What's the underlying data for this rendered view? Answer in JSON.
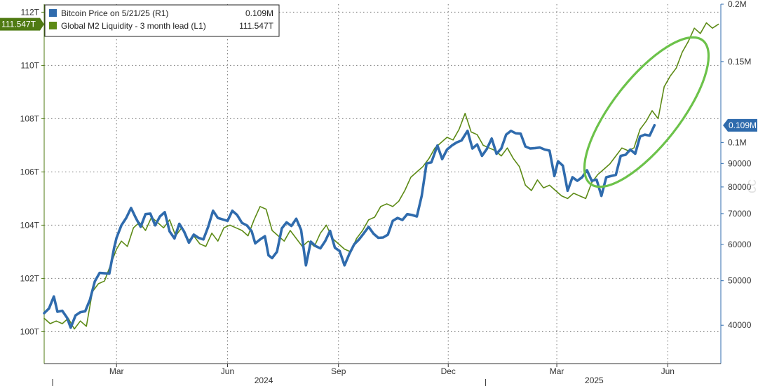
{
  "colors": {
    "btc": "#2f6bad",
    "m2": "#5c8a15",
    "highlight": "#6cc24a",
    "grid": "#777777",
    "axis_left": "#4f7a12",
    "axis_right": "#2f6bad"
  },
  "legend": {
    "items": [
      {
        "label": "Bitcoin Price on 5/21/25 (R1)",
        "value": "0.109M",
        "color": "#2f6bad"
      },
      {
        "label": "Global M2 Liquidity - 3 month lead (L1)",
        "value": "111.547T",
        "color": "#5c8a15"
      }
    ]
  },
  "chart_data": {
    "type": "line",
    "title": "",
    "x_range": [
      "2024-01-01",
      "2025-07-15"
    ],
    "x_ticks": [
      {
        "date": "2024-03-01",
        "label": "Mar"
      },
      {
        "date": "2024-06-01",
        "label": "Jun"
      },
      {
        "date": "2024-09-01",
        "label": "Sep"
      },
      {
        "date": "2024-12-01",
        "label": "Dec"
      },
      {
        "date": "2025-03-01",
        "label": "Mar"
      },
      {
        "date": "2025-06-01",
        "label": "Jun"
      }
    ],
    "year_labels": [
      {
        "label": "2024",
        "date": "2024-07-01"
      },
      {
        "label": "2025",
        "date": "2025-04-01"
      }
    ],
    "left_axis": {
      "unit": "T",
      "range": [
        98.8,
        112.3
      ],
      "ticks": [
        {
          "value": 100,
          "label": "100T"
        },
        {
          "value": 102,
          "label": "102T"
        },
        {
          "value": 104,
          "label": "104T"
        },
        {
          "value": 106,
          "label": "106T"
        },
        {
          "value": 108,
          "label": "108T"
        },
        {
          "value": 110,
          "label": "110T"
        },
        {
          "value": 112,
          "label": "112T"
        }
      ],
      "last_value_label": "111.547T",
      "last_value": 111.547
    },
    "right_axis": {
      "scale": "log",
      "range": [
        33000,
        200000
      ],
      "ticks": [
        {
          "value": 40000,
          "label": "40000"
        },
        {
          "value": 50000,
          "label": "50000"
        },
        {
          "value": 60000,
          "label": "60000"
        },
        {
          "value": 70000,
          "label": "70000"
        },
        {
          "value": 80000,
          "label": "80000"
        },
        {
          "value": 90000,
          "label": "90000"
        },
        {
          "value": 100000,
          "label": "0.1M"
        },
        {
          "value": 150000,
          "label": "0.15M"
        },
        {
          "value": 200000,
          "label": "0.2M"
        }
      ],
      "last_value_label": "0.109M",
      "last_value": 109000
    },
    "grid": true,
    "series": [
      {
        "name": "Bitcoin Price on 5/21/25 (R1)",
        "axis": "right",
        "color": "#2f6bad",
        "points": [
          [
            "2024-01-01",
            42500
          ],
          [
            "2024-01-05",
            43500
          ],
          [
            "2024-01-09",
            46200
          ],
          [
            "2024-01-12",
            42800
          ],
          [
            "2024-01-16",
            43000
          ],
          [
            "2024-01-20",
            41500
          ],
          [
            "2024-01-23",
            39500
          ],
          [
            "2024-01-27",
            42000
          ],
          [
            "2024-01-31",
            42700
          ],
          [
            "2024-02-04",
            42900
          ],
          [
            "2024-02-08",
            45500
          ],
          [
            "2024-02-12",
            49800
          ],
          [
            "2024-02-16",
            52000
          ],
          [
            "2024-02-20",
            51900
          ],
          [
            "2024-02-24",
            51800
          ],
          [
            "2024-02-28",
            59000
          ],
          [
            "2024-03-01",
            62000
          ],
          [
            "2024-03-05",
            66000
          ],
          [
            "2024-03-09",
            68500
          ],
          [
            "2024-03-13",
            72000
          ],
          [
            "2024-03-17",
            68500
          ],
          [
            "2024-03-21",
            65500
          ],
          [
            "2024-03-25",
            69800
          ],
          [
            "2024-03-29",
            70000
          ],
          [
            "2024-04-02",
            66000
          ],
          [
            "2024-04-06",
            69000
          ],
          [
            "2024-04-10",
            70500
          ],
          [
            "2024-04-14",
            64000
          ],
          [
            "2024-04-18",
            61800
          ],
          [
            "2024-04-22",
            66500
          ],
          [
            "2024-04-26",
            64000
          ],
          [
            "2024-04-30",
            60500
          ],
          [
            "2024-05-04",
            63000
          ],
          [
            "2024-05-08",
            62000
          ],
          [
            "2024-05-12",
            61500
          ],
          [
            "2024-05-16",
            65500
          ],
          [
            "2024-05-20",
            71000
          ],
          [
            "2024-05-24",
            68500
          ],
          [
            "2024-05-28",
            68000
          ],
          [
            "2024-06-01",
            67500
          ],
          [
            "2024-06-05",
            71000
          ],
          [
            "2024-06-09",
            69500
          ],
          [
            "2024-06-13",
            66800
          ],
          [
            "2024-06-17",
            66000
          ],
          [
            "2024-06-21",
            64100
          ],
          [
            "2024-06-24",
            60300
          ],
          [
            "2024-06-28",
            61500
          ],
          [
            "2024-07-02",
            62500
          ],
          [
            "2024-07-05",
            56800
          ],
          [
            "2024-07-08",
            56000
          ],
          [
            "2024-07-12",
            57800
          ],
          [
            "2024-07-16",
            65000
          ],
          [
            "2024-07-20",
            67000
          ],
          [
            "2024-07-24",
            65800
          ],
          [
            "2024-07-28",
            68200
          ],
          [
            "2024-08-01",
            64500
          ],
          [
            "2024-08-05",
            54000
          ],
          [
            "2024-08-09",
            60800
          ],
          [
            "2024-08-13",
            59500
          ],
          [
            "2024-08-17",
            58800
          ],
          [
            "2024-08-21",
            61000
          ],
          [
            "2024-08-25",
            64200
          ],
          [
            "2024-08-29",
            59000
          ],
          [
            "2024-09-02",
            58000
          ],
          [
            "2024-09-06",
            54000
          ],
          [
            "2024-09-10",
            57200
          ],
          [
            "2024-09-14",
            60000
          ],
          [
            "2024-09-18",
            61500
          ],
          [
            "2024-09-22",
            63400
          ],
          [
            "2024-09-26",
            65500
          ],
          [
            "2024-09-30",
            63300
          ],
          [
            "2024-10-04",
            62000
          ],
          [
            "2024-10-08",
            62100
          ],
          [
            "2024-10-12",
            63000
          ],
          [
            "2024-10-16",
            67500
          ],
          [
            "2024-10-20",
            68500
          ],
          [
            "2024-10-24",
            67800
          ],
          [
            "2024-10-28",
            69800
          ],
          [
            "2024-11-01",
            69500
          ],
          [
            "2024-11-05",
            69000
          ],
          [
            "2024-11-09",
            76500
          ],
          [
            "2024-11-13",
            90000
          ],
          [
            "2024-11-17",
            90500
          ],
          [
            "2024-11-22",
            98500
          ],
          [
            "2024-11-26",
            92000
          ],
          [
            "2024-11-30",
            96500
          ],
          [
            "2024-12-04",
            98500
          ],
          [
            "2024-12-08",
            100000
          ],
          [
            "2024-12-12",
            101000
          ],
          [
            "2024-12-17",
            106000
          ],
          [
            "2024-12-21",
            97000
          ],
          [
            "2024-12-25",
            99000
          ],
          [
            "2024-12-29",
            93500
          ],
          [
            "2025-01-02",
            96800
          ],
          [
            "2025-01-06",
            102000
          ],
          [
            "2025-01-10",
            94500
          ],
          [
            "2025-01-14",
            97000
          ],
          [
            "2025-01-18",
            104000
          ],
          [
            "2025-01-22",
            106000
          ],
          [
            "2025-01-26",
            104700
          ],
          [
            "2025-01-30",
            104500
          ],
          [
            "2025-02-03",
            98000
          ],
          [
            "2025-02-07",
            97000
          ],
          [
            "2025-02-11",
            97200
          ],
          [
            "2025-02-15",
            97500
          ],
          [
            "2025-02-19",
            96500
          ],
          [
            "2025-02-23",
            96000
          ],
          [
            "2025-02-27",
            84500
          ],
          [
            "2025-03-02",
            91000
          ],
          [
            "2025-03-06",
            89000
          ],
          [
            "2025-03-10",
            78500
          ],
          [
            "2025-03-14",
            84000
          ],
          [
            "2025-03-18",
            82500
          ],
          [
            "2025-03-22",
            84000
          ],
          [
            "2025-03-26",
            87000
          ],
          [
            "2025-03-30",
            82500
          ],
          [
            "2025-04-03",
            83000
          ],
          [
            "2025-04-07",
            76500
          ],
          [
            "2025-04-11",
            84000
          ],
          [
            "2025-04-15",
            84500
          ],
          [
            "2025-04-19",
            85000
          ],
          [
            "2025-04-23",
            93500
          ],
          [
            "2025-04-27",
            94000
          ],
          [
            "2025-05-01",
            96500
          ],
          [
            "2025-05-05",
            94500
          ],
          [
            "2025-05-09",
            103000
          ],
          [
            "2025-05-13",
            104000
          ],
          [
            "2025-05-17",
            103500
          ],
          [
            "2025-05-21",
            109000
          ]
        ]
      },
      {
        "name": "Global M2 Liquidity - 3 month lead (L1)",
        "axis": "left",
        "color": "#5c8a15",
        "points": [
          [
            "2024-01-01",
            100.5
          ],
          [
            "2024-01-06",
            100.3
          ],
          [
            "2024-01-11",
            100.4
          ],
          [
            "2024-01-16",
            100.3
          ],
          [
            "2024-01-21",
            100.5
          ],
          [
            "2024-01-26",
            100.1
          ],
          [
            "2024-01-31",
            100.4
          ],
          [
            "2024-02-05",
            100.2
          ],
          [
            "2024-02-10",
            101.5
          ],
          [
            "2024-02-15",
            101.8
          ],
          [
            "2024-02-20",
            101.9
          ],
          [
            "2024-02-25",
            102.5
          ],
          [
            "2024-03-01",
            103.1
          ],
          [
            "2024-03-05",
            103.4
          ],
          [
            "2024-03-10",
            103.2
          ],
          [
            "2024-03-15",
            103.9
          ],
          [
            "2024-03-20",
            104.1
          ],
          [
            "2024-03-25",
            103.8
          ],
          [
            "2024-03-30",
            104.3
          ],
          [
            "2024-04-04",
            104.1
          ],
          [
            "2024-04-09",
            103.9
          ],
          [
            "2024-04-14",
            104.2
          ],
          [
            "2024-04-19",
            103.6
          ],
          [
            "2024-04-24",
            103.9
          ],
          [
            "2024-04-29",
            103.4
          ],
          [
            "2024-05-04",
            103.6
          ],
          [
            "2024-05-09",
            103.3
          ],
          [
            "2024-05-14",
            103.2
          ],
          [
            "2024-05-19",
            103.7
          ],
          [
            "2024-05-24",
            103.4
          ],
          [
            "2024-05-29",
            103.9
          ],
          [
            "2024-06-03",
            104.0
          ],
          [
            "2024-06-08",
            103.9
          ],
          [
            "2024-06-13",
            103.8
          ],
          [
            "2024-06-18",
            103.6
          ],
          [
            "2024-06-23",
            104.2
          ],
          [
            "2024-06-28",
            104.7
          ],
          [
            "2024-07-03",
            104.6
          ],
          [
            "2024-07-08",
            103.8
          ],
          [
            "2024-07-13",
            103.6
          ],
          [
            "2024-07-18",
            103.4
          ],
          [
            "2024-07-23",
            103.8
          ],
          [
            "2024-07-28",
            103.5
          ],
          [
            "2024-08-02",
            103.2
          ],
          [
            "2024-08-07",
            103.4
          ],
          [
            "2024-08-12",
            103.2
          ],
          [
            "2024-08-17",
            103.7
          ],
          [
            "2024-08-22",
            104.0
          ],
          [
            "2024-08-27",
            103.5
          ],
          [
            "2024-09-01",
            103.3
          ],
          [
            "2024-09-06",
            103.1
          ],
          [
            "2024-09-11",
            103.0
          ],
          [
            "2024-09-16",
            103.5
          ],
          [
            "2024-09-21",
            103.8
          ],
          [
            "2024-09-26",
            104.2
          ],
          [
            "2024-10-01",
            104.3
          ],
          [
            "2024-10-06",
            104.7
          ],
          [
            "2024-10-11",
            104.8
          ],
          [
            "2024-10-16",
            104.7
          ],
          [
            "2024-10-21",
            104.9
          ],
          [
            "2024-10-26",
            105.3
          ],
          [
            "2024-10-31",
            105.8
          ],
          [
            "2024-11-05",
            106.0
          ],
          [
            "2024-11-10",
            106.2
          ],
          [
            "2024-11-15",
            106.5
          ],
          [
            "2024-11-20",
            106.9
          ],
          [
            "2024-11-25",
            107.1
          ],
          [
            "2024-11-30",
            107.3
          ],
          [
            "2024-12-05",
            107.2
          ],
          [
            "2024-12-10",
            107.6
          ],
          [
            "2024-12-15",
            108.2
          ],
          [
            "2024-12-20",
            107.5
          ],
          [
            "2024-12-25",
            107.4
          ],
          [
            "2024-12-30",
            107.0
          ],
          [
            "2025-01-04",
            106.9
          ],
          [
            "2025-01-09",
            106.8
          ],
          [
            "2025-01-14",
            106.6
          ],
          [
            "2025-01-19",
            106.9
          ],
          [
            "2025-01-24",
            106.5
          ],
          [
            "2025-01-29",
            106.2
          ],
          [
            "2025-02-03",
            105.5
          ],
          [
            "2025-02-08",
            105.3
          ],
          [
            "2025-02-13",
            105.7
          ],
          [
            "2025-02-18",
            105.4
          ],
          [
            "2025-02-23",
            105.5
          ],
          [
            "2025-02-28",
            105.3
          ],
          [
            "2025-03-05",
            105.1
          ],
          [
            "2025-03-10",
            105.0
          ],
          [
            "2025-03-15",
            105.2
          ],
          [
            "2025-03-20",
            105.1
          ],
          [
            "2025-03-25",
            105.0
          ],
          [
            "2025-03-30",
            105.6
          ],
          [
            "2025-04-04",
            105.9
          ],
          [
            "2025-04-09",
            106.1
          ],
          [
            "2025-04-14",
            106.3
          ],
          [
            "2025-04-19",
            106.6
          ],
          [
            "2025-04-24",
            106.9
          ],
          [
            "2025-04-29",
            106.8
          ],
          [
            "2025-05-04",
            106.9
          ],
          [
            "2025-05-09",
            107.6
          ],
          [
            "2025-05-14",
            107.9
          ],
          [
            "2025-05-19",
            108.3
          ],
          [
            "2025-05-24",
            108.0
          ],
          [
            "2025-05-29",
            109.2
          ],
          [
            "2025-06-03",
            109.6
          ],
          [
            "2025-06-08",
            109.9
          ],
          [
            "2025-06-13",
            110.5
          ],
          [
            "2025-06-18",
            110.9
          ],
          [
            "2025-06-23",
            111.4
          ],
          [
            "2025-06-28",
            111.2
          ],
          [
            "2025-07-03",
            111.6
          ],
          [
            "2025-07-08",
            111.4
          ],
          [
            "2025-07-13",
            111.547
          ]
        ]
      }
    ]
  }
}
